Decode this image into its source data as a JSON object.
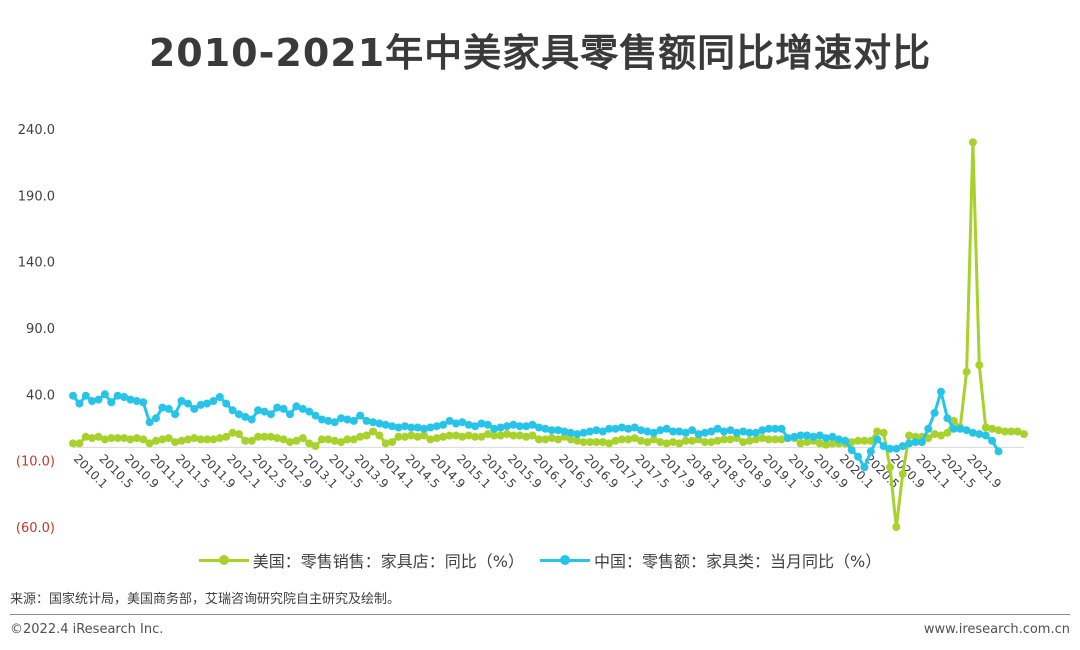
{
  "page": {
    "title": "2010-2021年中美家具零售额同比增速对比",
    "source": "来源：国家统计局，美国商务部，艾瑞咨询研究院自主研究及绘制。",
    "copyright": "©2022.4 iResearch Inc.",
    "website": "www.iresearch.com.cn"
  },
  "colors": {
    "us": "#a8d22b",
    "cn": "#27c4ea",
    "negative_label": "#c0392b",
    "axis_label": "#404040",
    "grid": "#d9d9d9"
  },
  "chart_data": {
    "type": "line",
    "xlabel": "",
    "ylabel": "",
    "ylim": [
      -60,
      240
    ],
    "yticks": [
      {
        "value": 240,
        "label": "240.0",
        "negative": false
      },
      {
        "value": 190,
        "label": "190.0",
        "negative": false
      },
      {
        "value": 140,
        "label": "140.0",
        "negative": false
      },
      {
        "value": 90,
        "label": "90.0",
        "negative": false
      },
      {
        "value": 40,
        "label": "40.0",
        "negative": false
      },
      {
        "value": -10,
        "label": "(10.0)",
        "negative": true
      },
      {
        "value": -60,
        "label": "(60.0)",
        "negative": true
      }
    ],
    "grid": false,
    "legend": "bottom",
    "start": "2010.1",
    "x_tick_labels": [
      "2010.1",
      "2010.5",
      "2010.9",
      "2011.1",
      "2011.5",
      "2011.9",
      "2012.1",
      "2012.5",
      "2012.9",
      "2013.1",
      "2013.5",
      "2013.9",
      "2014.1",
      "2014.5",
      "2014.9",
      "2015.1",
      "2015.5",
      "2015.9",
      "2016.1",
      "2016.5",
      "2016.9",
      "2017.1",
      "2017.5",
      "2017.9",
      "2018.1",
      "2018.5",
      "2018.9",
      "2019.1",
      "2019.5",
      "2019.9",
      "2020.1",
      "2020.5",
      "2020.9",
      "2021.1",
      "2021.5",
      "2021.9"
    ],
    "series": [
      {
        "name": "美国：零售销售：家具店：同比（%）",
        "key": "us",
        "values": [
          3,
          3,
          8,
          7,
          8,
          6,
          7,
          7,
          7,
          6,
          7,
          6,
          3,
          5,
          6,
          7,
          4,
          5,
          6,
          7,
          6,
          6,
          6,
          7,
          8,
          11,
          10,
          5,
          5,
          8,
          8,
          8,
          7,
          6,
          4,
          5,
          7,
          3,
          1,
          6,
          6,
          5,
          4,
          6,
          6,
          8,
          9,
          12,
          9,
          3,
          4,
          8,
          8,
          9,
          8,
          9,
          6,
          7,
          8,
          9,
          9,
          8,
          9,
          8,
          8,
          10,
          9,
          9,
          10,
          9,
          9,
          8,
          9,
          6,
          6,
          7,
          6,
          8,
          6,
          5,
          4,
          4,
          4,
          4,
          3,
          5,
          6,
          6,
          7,
          5,
          4,
          6,
          4,
          3,
          4,
          3,
          5,
          5,
          6,
          4,
          4,
          5,
          6,
          6,
          7,
          4,
          5,
          6,
          7,
          6,
          6,
          6,
          7,
          7,
          3,
          4,
          5,
          3,
          2,
          3,
          3,
          3,
          4,
          5,
          5,
          5,
          12,
          11,
          -15,
          -60,
          -20,
          9,
          8,
          8,
          7,
          10,
          9,
          11,
          20,
          15,
          57,
          230,
          62,
          15,
          14,
          13,
          12,
          12,
          12,
          10
        ]
      },
      {
        "name": "中国：零售额：家具类：当月同比（%）",
        "key": "cn",
        "values": [
          39,
          33,
          39,
          35,
          36,
          40,
          34,
          39,
          38,
          36,
          35,
          34,
          19,
          22,
          30,
          29,
          25,
          35,
          33,
          29,
          32,
          33,
          35,
          38,
          33,
          28,
          25,
          23,
          21,
          28,
          27,
          25,
          30,
          29,
          25,
          31,
          29,
          27,
          24,
          21,
          20,
          19,
          22,
          21,
          20,
          24,
          20,
          19,
          18,
          17,
          16,
          15,
          16,
          15,
          15,
          14,
          15,
          16,
          17,
          20,
          18,
          19,
          17,
          16,
          18,
          17,
          14,
          15,
          16,
          17,
          16,
          16,
          17,
          15,
          14,
          13,
          13,
          12,
          11,
          10,
          11,
          12,
          13,
          12,
          14,
          14,
          15,
          14,
          15,
          13,
          12,
          11,
          13,
          14,
          12,
          12,
          11,
          13,
          10,
          11,
          12,
          14,
          12,
          13,
          11,
          12,
          11,
          11,
          13,
          14,
          14,
          14,
          7,
          8,
          9,
          9,
          8,
          9,
          7,
          8,
          6,
          5,
          -2,
          -7,
          -15,
          -3,
          6,
          1,
          -1,
          -1,
          1,
          3,
          4,
          4,
          14,
          26,
          42,
          22,
          14,
          14,
          13,
          11,
          10,
          9,
          5,
          -3
        ]
      }
    ]
  }
}
